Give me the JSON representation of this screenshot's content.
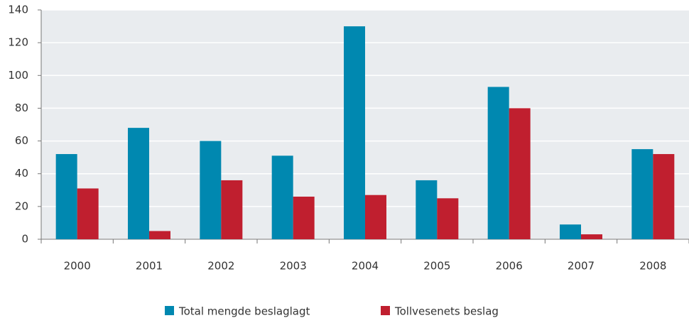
{
  "chart_data": {
    "type": "bar",
    "categories": [
      "2000",
      "2001",
      "2002",
      "2003",
      "2004",
      "2005",
      "2006",
      "2007",
      "2008"
    ],
    "series": [
      {
        "name": "Total mengde beslaglagt",
        "color": "#0088b0",
        "values": [
          52,
          68,
          60,
          51,
          130,
          36,
          93,
          9,
          55
        ]
      },
      {
        "name": "Tollvesenets beslag",
        "color": "#c01f2f",
        "values": [
          31,
          5,
          36,
          26,
          27,
          25,
          80,
          3,
          52
        ]
      }
    ],
    "ylim": [
      0,
      140
    ],
    "yticks": [
      0,
      20,
      40,
      60,
      80,
      100,
      120,
      140
    ],
    "grid": true
  }
}
